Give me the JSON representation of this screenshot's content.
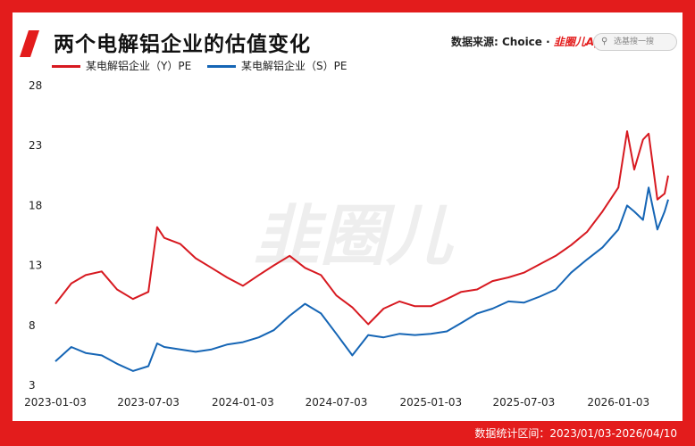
{
  "header": {
    "title": "两个电解铝企业的估值变化",
    "source_prefix": "数据来源: Choice · ",
    "source_brand": "韭圈儿App",
    "search_placeholder": "选基搜一搜"
  },
  "footer": {
    "range_text": "数据统计区间：2023/01/03-2026/04/10"
  },
  "watermark": "韭圈儿",
  "colors": {
    "frame": "#e31c1c",
    "series_y": "#d71920",
    "series_s": "#1565b5"
  },
  "chart_data": {
    "type": "line",
    "title": "两个电解铝企业的估值变化",
    "xlabel": "",
    "ylabel": "",
    "grid": false,
    "legend_position": "top-left",
    "ylim": [
      3,
      28
    ],
    "yticks": [
      3,
      8,
      13,
      18,
      23,
      28
    ],
    "xticks": [
      "2023-01-03",
      "2023-07-03",
      "2024-01-03",
      "2024-07-03",
      "2025-01-03",
      "2025-07-03",
      "2026-01-03"
    ],
    "x": [
      "2023-01-03",
      "2023-02-03",
      "2023-03-03",
      "2023-04-03",
      "2023-05-03",
      "2023-06-03",
      "2023-07-03",
      "2023-07-20",
      "2023-08-03",
      "2023-09-03",
      "2023-10-03",
      "2023-11-03",
      "2023-12-03",
      "2024-01-03",
      "2024-02-03",
      "2024-03-03",
      "2024-04-03",
      "2024-05-03",
      "2024-06-03",
      "2024-07-03",
      "2024-08-03",
      "2024-09-03",
      "2024-10-03",
      "2024-11-03",
      "2024-12-03",
      "2025-01-03",
      "2025-02-03",
      "2025-03-03",
      "2025-04-03",
      "2025-05-03",
      "2025-06-03",
      "2025-07-03",
      "2025-08-03",
      "2025-09-03",
      "2025-10-03",
      "2025-11-03",
      "2025-12-03",
      "2026-01-03",
      "2026-01-20",
      "2026-02-03",
      "2026-02-20",
      "2026-03-03",
      "2026-03-20",
      "2026-04-03",
      "2026-04-10"
    ],
    "series": [
      {
        "name": "某电解铝企业（Y）PE",
        "values": [
          9.8,
          11.5,
          12.2,
          12.5,
          11.0,
          10.2,
          10.8,
          16.2,
          15.3,
          14.8,
          13.6,
          12.8,
          12.0,
          11.3,
          12.2,
          13.0,
          13.8,
          12.8,
          12.2,
          10.5,
          9.5,
          8.1,
          9.4,
          10.0,
          9.6,
          9.6,
          10.2,
          10.8,
          11.0,
          11.7,
          12.0,
          12.4,
          13.1,
          13.8,
          14.7,
          15.8,
          17.5,
          19.5,
          24.2,
          21.0,
          23.5,
          24.0,
          18.5,
          19.0,
          20.5
        ]
      },
      {
        "name": "某电解铝企业（S）PE",
        "values": [
          5.0,
          6.2,
          5.7,
          5.5,
          4.8,
          4.2,
          4.6,
          6.5,
          6.2,
          6.0,
          5.8,
          6.0,
          6.4,
          6.6,
          7.0,
          7.6,
          8.8,
          9.8,
          9.0,
          7.3,
          5.5,
          7.2,
          7.0,
          7.3,
          7.2,
          7.3,
          7.5,
          8.2,
          9.0,
          9.4,
          10.0,
          9.9,
          10.4,
          11.0,
          12.4,
          13.5,
          14.5,
          16.0,
          18.0,
          17.5,
          16.8,
          19.5,
          16.0,
          17.5,
          18.5
        ]
      }
    ]
  }
}
